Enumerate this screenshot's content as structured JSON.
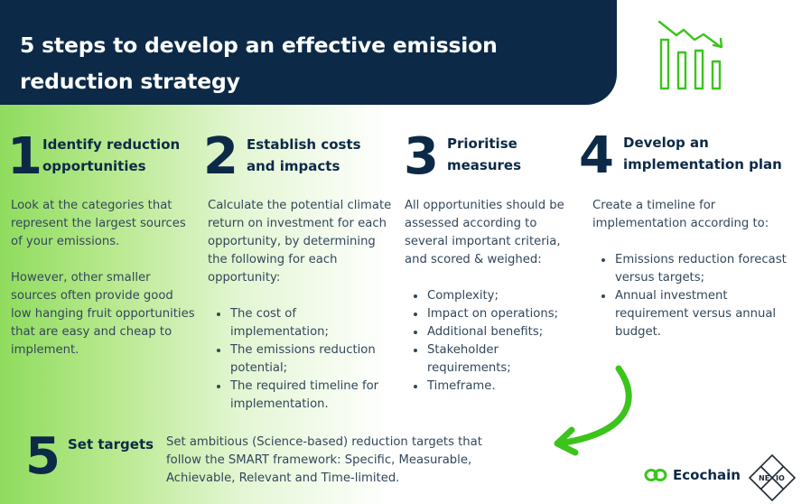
{
  "title": "5 steps to develop an effective emission reduction strategy",
  "steps": [
    {
      "number": "1",
      "title_lines": [
        "Identify reduction",
        "opportunities"
      ],
      "paragraphs": [
        "Look at the categories that represent the largest sources of your emissions.",
        "However, other smaller sources often provide good low hanging fruit opportunities that are easy and cheap to implement."
      ]
    },
    {
      "number": "2",
      "title_lines": [
        "Establish costs",
        "and impacts"
      ],
      "paragraph": "Calculate the potential climate return on investment for each opportunity, by determining the following for each opportunity:",
      "bullets": [
        "The cost of implementation;",
        "The emissions reduction potential;",
        "The required timeline for implementation."
      ]
    },
    {
      "number": "3",
      "title_lines": [
        "Prioritise",
        "measures"
      ],
      "paragraph": "All opportunities should be assessed according to several important criteria, and scored & weighed:",
      "bullets": [
        "Complexity;",
        "Impact on operations;",
        "Additional benefits;",
        "Stakeholder requirements;",
        "Timeframe."
      ]
    },
    {
      "number": "4",
      "title_lines": [
        "Develop an",
        "implementation plan"
      ],
      "paragraph": "Create a timeline for implementation according to:",
      "bullets": [
        "Emissions reduction forecast versus targets;",
        "Annual investment requirement versus annual budget."
      ]
    },
    {
      "number": "5",
      "title": "Set targets",
      "paragraph": "Set ambitious (Science-based) reduction targets that follow the SMART framework: Specific, Measurable, Achievable, Relevant and Time-limited."
    }
  ],
  "logos": {
    "ecochain": "Ecochain",
    "nexio_left": "NE",
    "nexio_right": "IO"
  },
  "colors": {
    "navy": "#0c2a47",
    "green": "#3bc41c",
    "text": "#33475b"
  },
  "icons": [
    "declining-bar-chart-icon",
    "curved-arrow-icon",
    "ecochain-logo-icon",
    "nexio-logo-icon"
  ]
}
